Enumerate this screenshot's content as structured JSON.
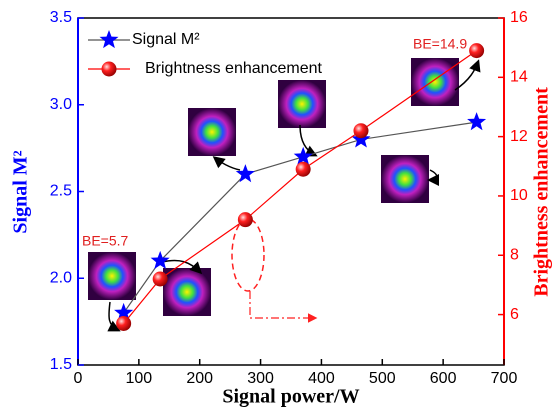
{
  "chart_data": {
    "type": "line",
    "x_label": "Signal power/W",
    "y_label": "Signal M²",
    "y2_label": "Brightness enhancement",
    "x": [
      75,
      135,
      275,
      370,
      465,
      655
    ],
    "series": [
      {
        "name": "Signal M²",
        "color": "#0000ff",
        "line_color": "#555555",
        "marker": "star",
        "values": [
          1.8,
          2.1,
          2.6,
          2.7,
          2.8,
          2.9
        ]
      },
      {
        "name": "Brightness enhancement",
        "color": "#ff0000",
        "line_color": "#ff0000",
        "marker": "ball",
        "axis": "y2",
        "values": [
          5.7,
          7.2,
          9.2,
          10.9,
          12.2,
          14.9
        ]
      }
    ],
    "annotations": [
      "BE=5.7",
      "BE=14.9"
    ],
    "xlim": [
      0,
      700
    ],
    "xticks": [
      0,
      100,
      200,
      300,
      400,
      500,
      600,
      700
    ],
    "ylim": [
      1.5,
      3.5
    ],
    "yticks": [
      1.5,
      {
        "value": 2.0,
        "label": "2.0"
      },
      2.5,
      {
        "value": 3.0,
        "label": "3.0"
      },
      3.5
    ],
    "y2lim": [
      4.3,
      16
    ],
    "y2ticks": [
      6,
      8,
      10,
      12,
      14,
      16
    ],
    "legend": "top-left"
  }
}
